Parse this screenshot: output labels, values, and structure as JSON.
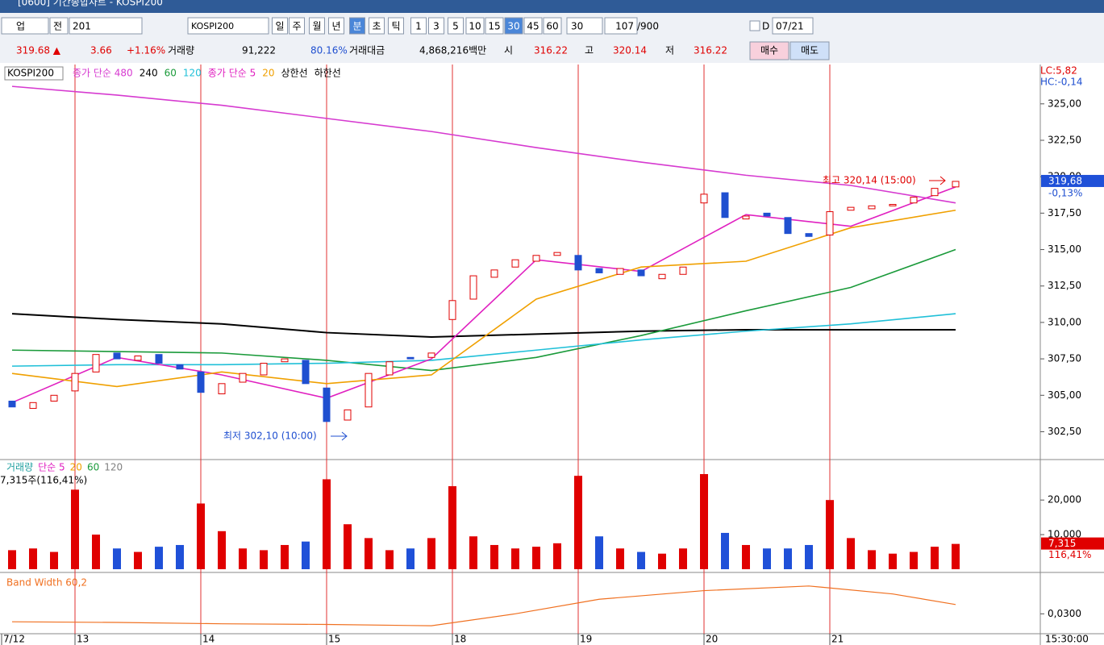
{
  "title_bar": "[0600] 기간종합차트 - KOSPI200",
  "toolbar": {
    "market": "업",
    "prev": "전",
    "code": "201",
    "name": "KOSPI200",
    "periods": [
      "일",
      "주",
      "월",
      "년",
      "분",
      "초",
      "틱",
      "1",
      "3",
      "5",
      "10",
      "15",
      "30",
      "45",
      "60"
    ],
    "selected": [
      4,
      12
    ],
    "interval": "30",
    "count": "107",
    "max": "/900",
    "d": "D",
    "date": "07/21"
  },
  "info": [
    {
      "text": "319.68 ▲",
      "color": "#e00000"
    },
    {
      "text": "3.66",
      "color": "#e00000"
    },
    {
      "text": "+1.16%",
      "color": "#e00000"
    },
    {
      "text": "거래량",
      "color": "#000000"
    },
    {
      "text": "91,222",
      "color": "#000000"
    },
    {
      "text": "80.16%",
      "color": "#1f4fd0"
    },
    {
      "text": "거래대금",
      "color": "#000000"
    },
    {
      "text": "4,868,216백만",
      "color": "#000000"
    },
    {
      "text": "시",
      "color": "#000000"
    },
    {
      "text": "316.22",
      "color": "#e00000"
    },
    {
      "text": "고",
      "color": "#000000"
    },
    {
      "text": "320.14",
      "color": "#e00000"
    },
    {
      "text": "저",
      "color": "#000000"
    },
    {
      "text": "316.22",
      "color": "#e00000"
    }
  ],
  "buy": "매수",
  "sell": "매도",
  "chart_data": {
    "type": "candlestick",
    "x_labels": [
      "7/12",
      "13",
      "14",
      "15",
      "18",
      "19",
      "20",
      "21"
    ],
    "x_end": "15:30:00",
    "price": {
      "symbol": "KOSPI200",
      "extra": [
        "상한선",
        "하한선"
      ],
      "lc": "LC:5,82",
      "hc": "HC:-0,14",
      "ylim": [
        300.7,
        327.7
      ],
      "yticks": [
        {
          "value": 325,
          "label": "325,00"
        },
        {
          "value": 322.5,
          "label": "322,50"
        },
        {
          "value": 320,
          "label": "320,00"
        },
        {
          "value": 317.5,
          "label": "317,50"
        },
        {
          "value": 315,
          "label": "315,00"
        },
        {
          "value": 312.5,
          "label": "312,50"
        },
        {
          "value": 310,
          "label": "310,00"
        },
        {
          "value": 307.5,
          "label": "307,50"
        },
        {
          "value": 305,
          "label": "305,00"
        },
        {
          "value": 302.5,
          "label": "302,50"
        }
      ],
      "up_color": "#e00000",
      "down_color": "#1f4fd0",
      "open": [
        304.6,
        304.1,
        304.6,
        305.3,
        306.6,
        307.9,
        307.4,
        307.8,
        307.1,
        306.6,
        305.1,
        305.9,
        306.4,
        307.3,
        307.4,
        305.5,
        303.3,
        304.2,
        306.4,
        307.6,
        307.6,
        310.2,
        311.6,
        313.1,
        313.8,
        314.2,
        314.6,
        314.6,
        313.7,
        313.3,
        313.6,
        313.0,
        313.3,
        318.2,
        318.9,
        317.1,
        317.5,
        317.2,
        316.1,
        316.0,
        317.7,
        317.8,
        318.0,
        318.2,
        318.7,
        319.3
      ],
      "close": [
        304.2,
        304.5,
        305.0,
        306.5,
        307.8,
        307.5,
        307.7,
        307.2,
        306.8,
        305.2,
        305.8,
        306.5,
        307.2,
        307.5,
        305.8,
        303.2,
        304.0,
        306.5,
        307.3,
        307.5,
        307.9,
        311.5,
        313.2,
        313.6,
        314.3,
        314.6,
        314.8,
        313.6,
        313.4,
        313.7,
        313.2,
        313.3,
        313.8,
        318.8,
        317.2,
        317.3,
        317.3,
        316.1,
        315.9,
        317.6,
        317.9,
        318.0,
        318.1,
        318.6,
        319.2,
        319.68
      ],
      "lines": [
        {
          "name": "종가 단순 480",
          "color": "#d63ad0",
          "x": [
            0,
            5,
            10,
            15,
            20,
            25,
            30,
            35,
            40,
            45
          ],
          "values": [
            326.2,
            325.6,
            324.9,
            324.0,
            323.1,
            322.0,
            321.0,
            320.1,
            319.4,
            318.2
          ]
        },
        {
          "name": "240",
          "color": "#000000",
          "x": [
            0,
            5,
            10,
            15,
            20,
            25,
            30,
            35,
            40,
            45
          ],
          "values": [
            310.6,
            310.2,
            309.9,
            309.3,
            309.0,
            309.2,
            309.4,
            309.5,
            309.5,
            309.5
          ]
        },
        {
          "name": "60",
          "color": "#1a9a3a",
          "x": [
            0,
            5,
            10,
            15,
            20,
            25,
            30,
            35,
            40,
            45
          ],
          "values": [
            308.1,
            308.0,
            307.9,
            307.4,
            306.7,
            307.6,
            309.1,
            310.8,
            312.4,
            315.0
          ]
        },
        {
          "name": "120",
          "color": "#20c0d8",
          "x": [
            0,
            5,
            10,
            15,
            20,
            25,
            30,
            35,
            40,
            45
          ],
          "values": [
            307.0,
            307.1,
            307.1,
            307.2,
            307.4,
            308.1,
            308.8,
            309.4,
            309.9,
            310.6
          ]
        },
        {
          "name": "종가 단순 5",
          "color": "#e020c0",
          "x": [
            0,
            5,
            10,
            15,
            20,
            25,
            30,
            35,
            40,
            45
          ],
          "values": [
            304.5,
            307.6,
            306.4,
            304.8,
            307.5,
            314.3,
            313.5,
            317.4,
            316.6,
            319.3
          ]
        },
        {
          "name": "20",
          "color": "#f0a000",
          "x": [
            0,
            5,
            10,
            15,
            20,
            25,
            30,
            35,
            40,
            45
          ],
          "values": [
            306.5,
            305.6,
            306.6,
            305.8,
            306.4,
            311.6,
            313.8,
            314.2,
            316.5,
            317.7
          ]
        }
      ],
      "last": {
        "value": 319.68,
        "label": "319,68"
      },
      "change": "-0,13%",
      "high_note": "최고 320,14 (15:00)",
      "low_note": "최저 302,10 (10:00)"
    },
    "volume": {
      "legend": [
        {
          "text": "거래량",
          "color": "#20a0a0"
        },
        {
          "text": "단순 5",
          "color": "#e020c0"
        },
        {
          "text": "20",
          "color": "#f0a000"
        },
        {
          "text": "60",
          "color": "#1a9a3a"
        },
        {
          "text": "120",
          "color": "#808080"
        }
      ],
      "summary": "7,315주(116,41%)",
      "ylim": [
        0,
        31000
      ],
      "yticks": [
        {
          "value": 20000,
          "label": "20,000"
        },
        {
          "value": 10000,
          "label": "10,000"
        }
      ],
      "values": [
        5500,
        6000,
        5000,
        23000,
        10000,
        6000,
        5000,
        6500,
        7000,
        19000,
        11000,
        6000,
        5500,
        7000,
        8000,
        26000,
        13000,
        9000,
        5500,
        6000,
        9000,
        24000,
        9500,
        7000,
        6000,
        6500,
        7500,
        27000,
        9500,
        6000,
        5000,
        4500,
        6000,
        27500,
        10500,
        7000,
        6000,
        6000,
        7000,
        20000,
        9000,
        5500,
        4500,
        5000,
        6500,
        7315
      ],
      "last": {
        "value": 7315,
        "label": "7,315"
      },
      "ratio": "116,41%"
    },
    "band": {
      "label": "Band Width 60,2",
      "color": "#f07020",
      "ylim": [
        0.027,
        0.036
      ],
      "yticks": [
        {
          "value": 0.03,
          "label": "0,0300"
        }
      ],
      "x": [
        0,
        5,
        10,
        15,
        20,
        24,
        28,
        33,
        38,
        42,
        45
      ],
      "values": [
        0.0288,
        0.0287,
        0.0285,
        0.0284,
        0.0282,
        0.03,
        0.0322,
        0.0335,
        0.0342,
        0.033,
        0.0314
      ]
    }
  }
}
